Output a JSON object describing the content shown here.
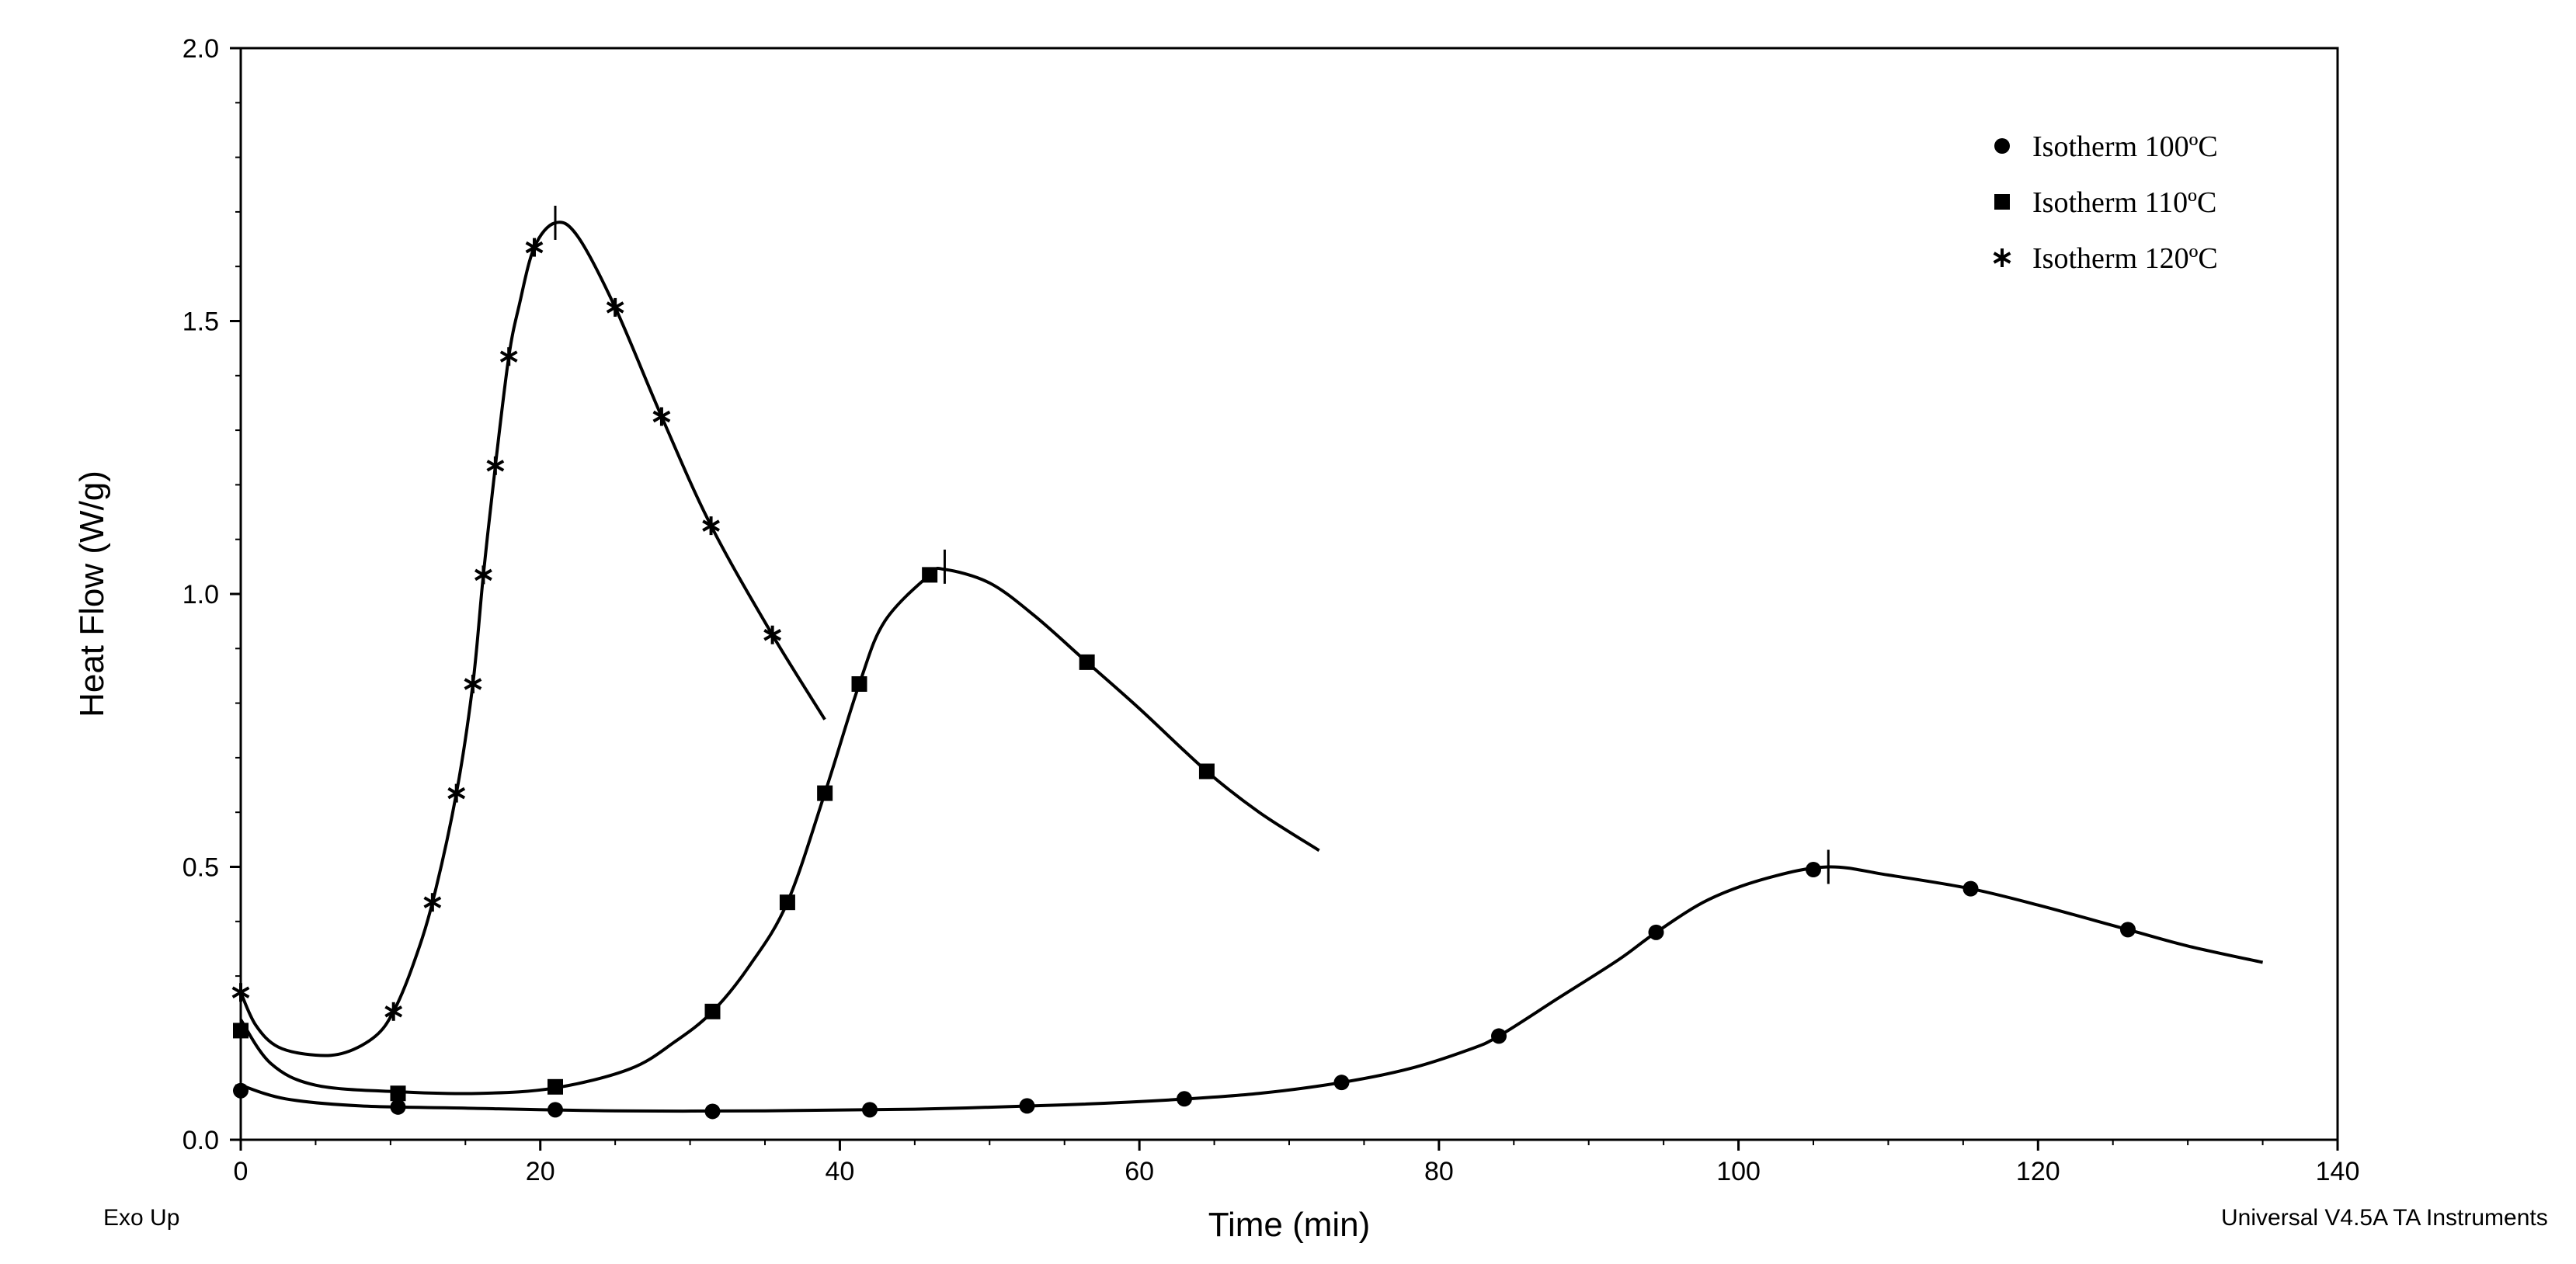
{
  "chart_data": {
    "type": "line",
    "xlabel": "Time (min)",
    "ylabel": "Heat Flow (W/g)",
    "xlim": [
      0,
      140
    ],
    "ylim": [
      0,
      2
    ],
    "xticks": [
      0,
      20,
      40,
      60,
      80,
      100,
      120,
      140
    ],
    "yticks": [
      0.0,
      0.5,
      1.0,
      1.5,
      2.0
    ],
    "ytick_labels": [
      "0.0",
      "0.5",
      "1.0",
      "1.5",
      "2.0"
    ],
    "grid": false,
    "legend_position": "top-right",
    "series": [
      {
        "name": "Isotherm 100ºC",
        "marker": "circle",
        "peak": [
          106,
          0.5
        ],
        "points": [
          [
            0,
            0.09
          ],
          [
            10.5,
            0.06
          ],
          [
            21,
            0.055
          ],
          [
            31.5,
            0.052
          ],
          [
            42,
            0.055
          ],
          [
            52.5,
            0.062
          ],
          [
            63,
            0.075
          ],
          [
            73.5,
            0.105
          ],
          [
            84,
            0.19
          ],
          [
            94.5,
            0.38
          ],
          [
            105,
            0.495
          ],
          [
            115.5,
            0.46
          ],
          [
            126,
            0.385
          ]
        ],
        "curve": [
          [
            0,
            0.1
          ],
          [
            3,
            0.075
          ],
          [
            8,
            0.062
          ],
          [
            15,
            0.058
          ],
          [
            25,
            0.053
          ],
          [
            35,
            0.053
          ],
          [
            45,
            0.056
          ],
          [
            55,
            0.064
          ],
          [
            62,
            0.073
          ],
          [
            68,
            0.085
          ],
          [
            73.5,
            0.105
          ],
          [
            78,
            0.13
          ],
          [
            82,
            0.165
          ],
          [
            84,
            0.19
          ],
          [
            88,
            0.26
          ],
          [
            92,
            0.33
          ],
          [
            94.5,
            0.38
          ],
          [
            98,
            0.44
          ],
          [
            102,
            0.48
          ],
          [
            106,
            0.5
          ],
          [
            110,
            0.485
          ],
          [
            115.5,
            0.46
          ],
          [
            120,
            0.43
          ],
          [
            126,
            0.385
          ],
          [
            130,
            0.355
          ],
          [
            135,
            0.325
          ]
        ]
      },
      {
        "name": "Isotherm 110ºC",
        "marker": "square",
        "peak": [
          47,
          1.05
        ],
        "points": [
          [
            0,
            0.2
          ],
          [
            10.5,
            0.085
          ],
          [
            21,
            0.097
          ],
          [
            31.5,
            0.235
          ],
          [
            36.5,
            0.435
          ],
          [
            39,
            0.635
          ],
          [
            41.3,
            0.835
          ],
          [
            46,
            1.035
          ],
          [
            56.5,
            0.875
          ],
          [
            64.5,
            0.675
          ]
        ],
        "curve": [
          [
            0,
            0.22
          ],
          [
            2,
            0.14
          ],
          [
            5,
            0.1
          ],
          [
            10.5,
            0.088
          ],
          [
            16,
            0.085
          ],
          [
            21,
            0.095
          ],
          [
            26,
            0.13
          ],
          [
            29,
            0.18
          ],
          [
            31.5,
            0.235
          ],
          [
            34,
            0.32
          ],
          [
            36.5,
            0.435
          ],
          [
            39,
            0.635
          ],
          [
            41.3,
            0.835
          ],
          [
            43,
            0.95
          ],
          [
            46,
            1.035
          ],
          [
            47,
            1.045
          ],
          [
            50,
            1.02
          ],
          [
            53,
            0.96
          ],
          [
            56.5,
            0.875
          ],
          [
            60,
            0.79
          ],
          [
            64.5,
            0.675
          ],
          [
            68,
            0.6
          ],
          [
            72,
            0.53
          ]
        ]
      },
      {
        "name": "Isotherm 120ºC",
        "marker": "star",
        "peak": [
          21,
          1.68
        ],
        "points": [
          [
            0,
            0.27
          ],
          [
            10.2,
            0.235
          ],
          [
            12.8,
            0.435
          ],
          [
            14.4,
            0.635
          ],
          [
            15.5,
            0.835
          ],
          [
            16.2,
            1.035
          ],
          [
            17,
            1.235
          ],
          [
            17.9,
            1.435
          ],
          [
            19.6,
            1.635
          ],
          [
            25,
            1.525
          ],
          [
            28.1,
            1.325
          ],
          [
            31.4,
            1.125
          ],
          [
            35.5,
            0.925
          ]
        ],
        "curve": [
          [
            0,
            0.27
          ],
          [
            1,
            0.21
          ],
          [
            2.5,
            0.17
          ],
          [
            5,
            0.155
          ],
          [
            7,
            0.16
          ],
          [
            9,
            0.19
          ],
          [
            10.2,
            0.235
          ],
          [
            11.5,
            0.32
          ],
          [
            12.8,
            0.435
          ],
          [
            14.4,
            0.635
          ],
          [
            15.5,
            0.835
          ],
          [
            16.2,
            1.035
          ],
          [
            17,
            1.235
          ],
          [
            17.9,
            1.435
          ],
          [
            18.6,
            1.53
          ],
          [
            19.6,
            1.635
          ],
          [
            21,
            1.68
          ],
          [
            22.5,
            1.655
          ],
          [
            25,
            1.525
          ],
          [
            28.1,
            1.325
          ],
          [
            31.4,
            1.125
          ],
          [
            35.5,
            0.925
          ],
          [
            39,
            0.77
          ]
        ]
      }
    ]
  },
  "footer": {
    "left": "Exo Up",
    "right": "Universal V4.5A TA Instruments"
  }
}
